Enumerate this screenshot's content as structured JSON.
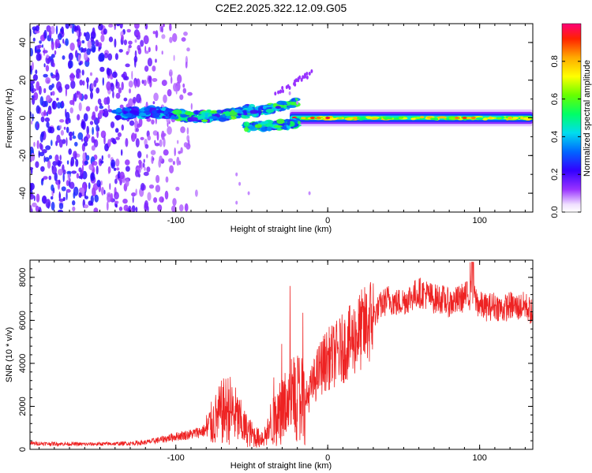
{
  "title": "C2E2.2025.322.12.09.G05",
  "chart_data": [
    {
      "type": "heatmap",
      "name": "spectrogram",
      "xlabel": "Height of straight line (km)",
      "ylabel": "Frequency (Hz)",
      "xlim": [
        -196,
        135
      ],
      "ylim": [
        -50,
        50
      ],
      "xticks": [
        -100,
        0,
        100
      ],
      "yticks": [
        -40,
        -20,
        0,
        20,
        40
      ],
      "colorbar": {
        "label": "Normalized spectral amplitude",
        "range": [
          0,
          1
        ],
        "ticks": [
          0.0,
          0.2,
          0.4,
          0.6,
          0.8
        ],
        "colors": [
          "#ffffff",
          "#cc99ff",
          "#6600ff",
          "#0000ff",
          "#00ccff",
          "#00ff66",
          "#ccff00",
          "#ffcc00",
          "#ff3300",
          "#ff0077"
        ]
      },
      "features": [
        {
          "x_range": [
            -196,
            -90
          ],
          "description_amplitude": 0.3,
          "kind": "scattered-noise"
        },
        {
          "x_range": [
            -140,
            -50
          ],
          "frequency_center": 2,
          "kind": "main-line"
        },
        {
          "x_range": [
            -55,
            -20
          ],
          "frequency_center": 2,
          "kind": "split-band"
        },
        {
          "x_range": [
            -25,
            135
          ],
          "frequency_center": 0,
          "kind": "main-line"
        }
      ]
    },
    {
      "type": "line",
      "name": "snr",
      "xlabel": "Height of straight line (km)",
      "ylabel": "SNR (10 * v/v)",
      "xlim": [
        -196,
        135
      ],
      "ylim": [
        0,
        8800
      ],
      "xticks": [
        -100,
        0,
        100
      ],
      "yticks": [
        0,
        2000,
        4000,
        6000,
        8000
      ],
      "color": "#ee2222",
      "series_points": [
        [
          -196,
          280
        ],
        [
          -180,
          260
        ],
        [
          -160,
          240
        ],
        [
          -140,
          260
        ],
        [
          -130,
          280
        ],
        [
          -120,
          320
        ],
        [
          -110,
          450
        ],
        [
          -100,
          600
        ],
        [
          -90,
          700
        ],
        [
          -80,
          900
        ],
        [
          -75,
          1300
        ],
        [
          -70,
          1700
        ],
        [
          -65,
          1900
        ],
        [
          -60,
          1500
        ],
        [
          -55,
          1000
        ],
        [
          -50,
          700
        ],
        [
          -45,
          500
        ],
        [
          -40,
          700
        ],
        [
          -35,
          1400
        ],
        [
          -30,
          2000
        ],
        [
          -25,
          2200
        ],
        [
          -20,
          2500
        ],
        [
          -15,
          2200
        ],
        [
          -10,
          3000
        ],
        [
          -5,
          3800
        ],
        [
          0,
          4200
        ],
        [
          5,
          4400
        ],
        [
          10,
          4700
        ],
        [
          15,
          5000
        ],
        [
          20,
          5400
        ],
        [
          25,
          5700
        ],
        [
          30,
          6200
        ],
        [
          35,
          6700
        ],
        [
          40,
          7000
        ],
        [
          45,
          6800
        ],
        [
          50,
          6900
        ],
        [
          55,
          7100
        ],
        [
          60,
          7300
        ],
        [
          65,
          7200
        ],
        [
          70,
          7000
        ],
        [
          75,
          7000
        ],
        [
          80,
          6800
        ],
        [
          85,
          6900
        ],
        [
          90,
          7100
        ],
        [
          95,
          7200
        ],
        [
          100,
          6700
        ],
        [
          105,
          6600
        ],
        [
          110,
          6700
        ],
        [
          115,
          6500
        ],
        [
          120,
          6700
        ],
        [
          125,
          6600
        ],
        [
          130,
          6700
        ],
        [
          135,
          6300
        ]
      ]
    }
  ]
}
